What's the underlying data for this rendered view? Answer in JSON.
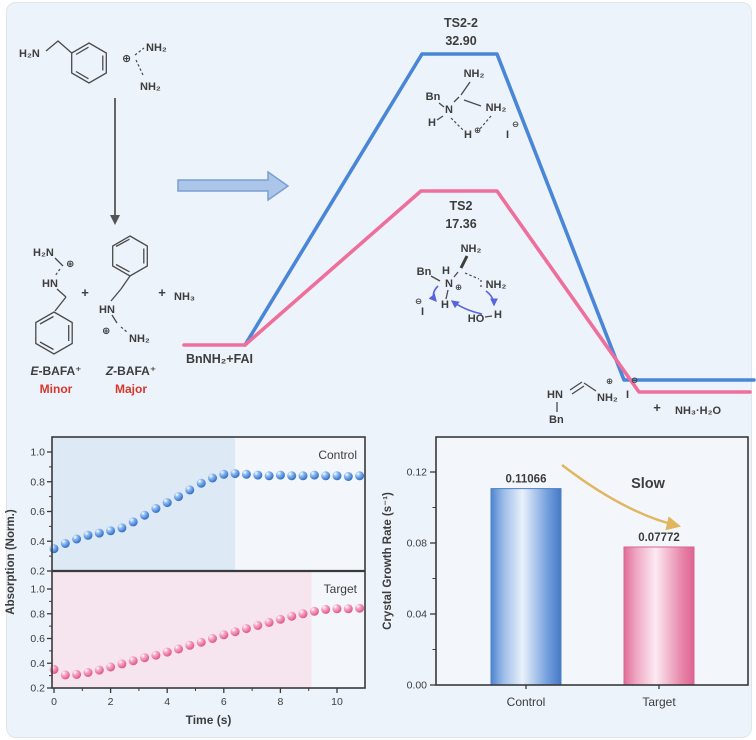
{
  "colors": {
    "background": "#edf3fa",
    "blue_line": "#4a86d8",
    "pink_line": "#ee6f9b",
    "red_text": "#d7372a",
    "gold": "#e2b55f",
    "ink": "#3d3d3d",
    "blue_shade": "#dde9f5",
    "pink_shade": "#f6e4ee"
  },
  "scheme": {
    "h2n": "H₂N",
    "nh2": "NH₂",
    "nh3": "NH₃",
    "hn": "HN",
    "plus": "+",
    "oplus": "⊕",
    "ominus": "⊖",
    "e_prefix": "E",
    "z_prefix": "Z",
    "bafa_suffix": "-BAFA⁺",
    "minor": "Minor",
    "major": "Major"
  },
  "energy": {
    "ts22_name": "TS2-2",
    "ts22_value": "32.90",
    "ts2_name": "TS2",
    "ts2_value": "17.36",
    "start_label": "BnNH₂+FAI",
    "bn": "Bn",
    "n": "N",
    "h": "H",
    "ho": "HO",
    "iodide": "I",
    "byproduct": "NH₃·H₂O"
  },
  "chart_data": [
    {
      "type": "scatter",
      "series_label": "Control",
      "color": "#4a86d8",
      "x": [
        0,
        0.4,
        0.8,
        1.2,
        1.6,
        2,
        2.4,
        2.8,
        3.2,
        3.6,
        4,
        4.4,
        4.8,
        5.2,
        5.6,
        6,
        6.4,
        6.8,
        7.2,
        7.6,
        8,
        8.4,
        8.8,
        9.2,
        9.6,
        10,
        10.4,
        10.8
      ],
      "y": [
        0.35,
        0.385,
        0.415,
        0.44,
        0.455,
        0.47,
        0.49,
        0.53,
        0.575,
        0.62,
        0.66,
        0.7,
        0.745,
        0.79,
        0.825,
        0.85,
        0.855,
        0.85,
        0.845,
        0.84,
        0.845,
        0.84,
        0.84,
        0.845,
        0.84,
        0.84,
        0.835,
        0.84
      ],
      "ylabel": "Absorption (Norm.)",
      "yticks": [
        1.0,
        0.8,
        0.6,
        0.4,
        0.2
      ],
      "xlim": [
        0,
        11
      ],
      "ylim": [
        0.2,
        1.1
      ],
      "shaded_until_x": 6.4
    },
    {
      "type": "scatter",
      "series_label": "Target",
      "color": "#ee6f9b",
      "x": [
        0,
        0.4,
        0.8,
        1.2,
        1.6,
        2,
        2.4,
        2.8,
        3.2,
        3.6,
        4,
        4.4,
        4.8,
        5.2,
        5.6,
        6,
        6.4,
        6.8,
        7.2,
        7.6,
        8,
        8.4,
        8.8,
        9.2,
        9.6,
        10,
        10.4,
        10.8
      ],
      "y": [
        0.35,
        0.305,
        0.31,
        0.325,
        0.345,
        0.37,
        0.395,
        0.42,
        0.445,
        0.465,
        0.49,
        0.515,
        0.545,
        0.57,
        0.6,
        0.63,
        0.655,
        0.68,
        0.705,
        0.73,
        0.755,
        0.78,
        0.8,
        0.82,
        0.835,
        0.84,
        0.84,
        0.845
      ],
      "xlabel": "Time (s)",
      "xticks": [
        0,
        2,
        4,
        6,
        8,
        10
      ],
      "yticks": [
        1.0,
        0.8,
        0.6,
        0.4,
        0.2
      ],
      "xlim": [
        0,
        11
      ],
      "ylim": [
        0.2,
        1.1
      ],
      "shaded_until_x": 9.1
    },
    {
      "type": "bar",
      "categories": [
        "Control",
        "Target"
      ],
      "values": [
        0.11066,
        0.07772
      ],
      "value_labels": [
        "0.11066",
        "0.07772"
      ],
      "ylabel": "Crystal Growth Rate (s⁻¹)",
      "yticks": [
        "0.12",
        "0.08",
        "0.04",
        "0.00"
      ],
      "ylim": [
        0,
        0.14
      ],
      "annotation": "Slow"
    }
  ]
}
